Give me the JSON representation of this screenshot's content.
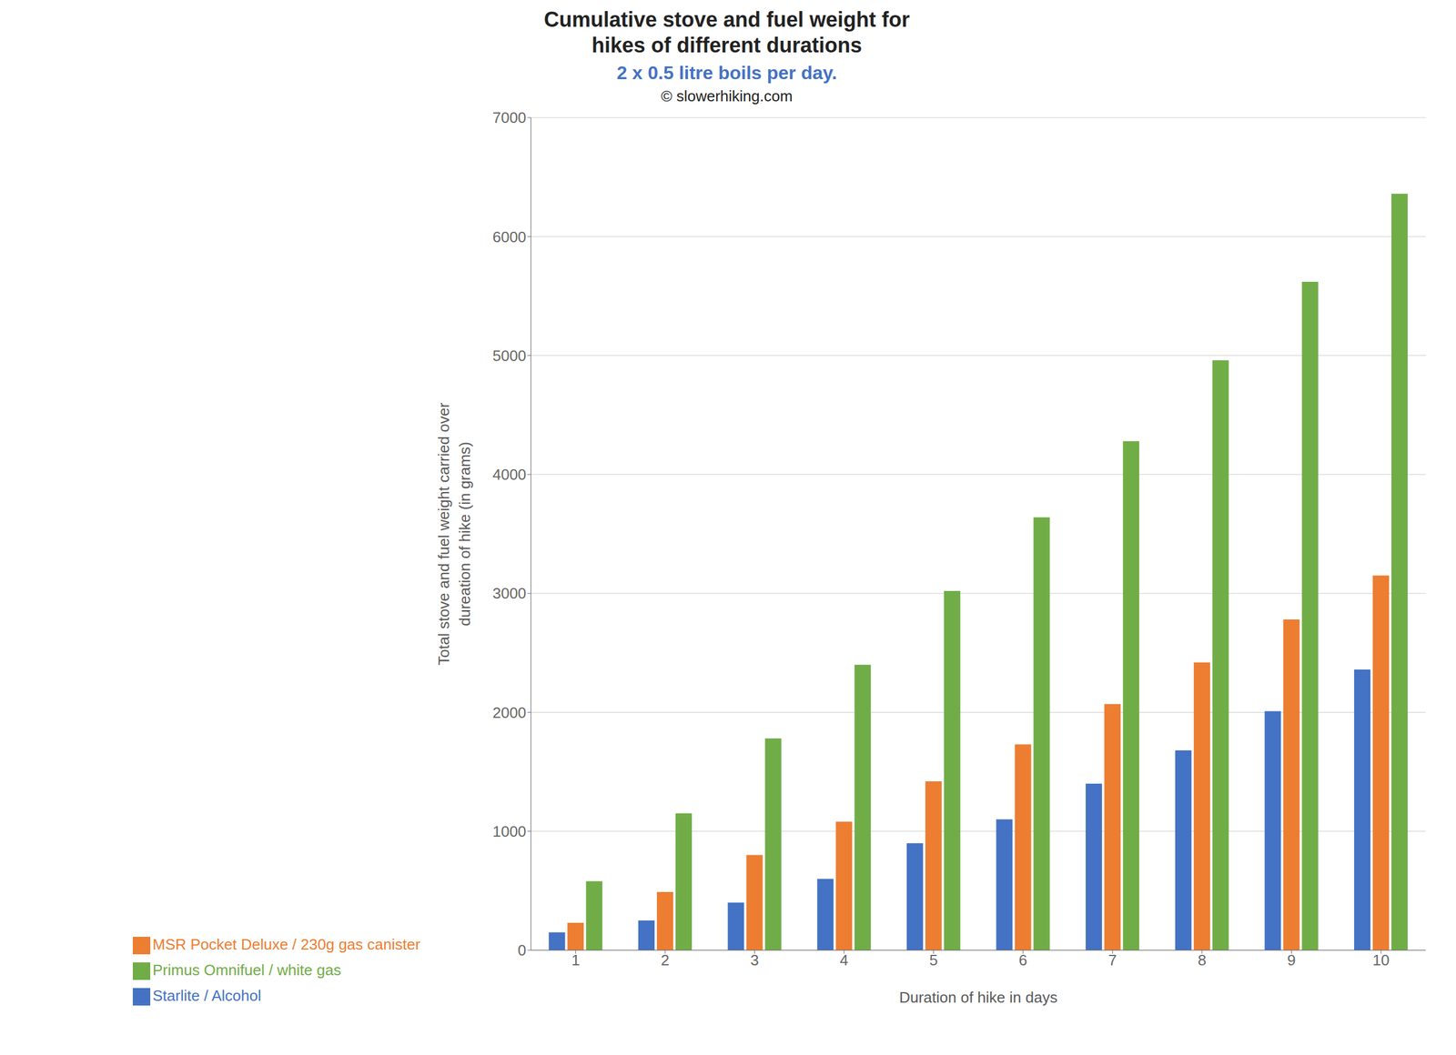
{
  "chart_data": {
    "type": "bar",
    "title": "Cumulative stove and fuel weight for\nhikes of different durations",
    "subtitle": "2 x 0.5 litre boils per day.",
    "annotations": [
      "© slowerhiking.com"
    ],
    "xlabel": "Duration of hike in days",
    "ylabel": "Total stove and fuel weight carried over\ndureation of hike (in grams)",
    "categories": [
      "1",
      "2",
      "3",
      "4",
      "5",
      "6",
      "7",
      "8",
      "9",
      "10"
    ],
    "series": [
      {
        "name": "Starlite / Alcohol",
        "color": "#4472C4",
        "values": [
          150,
          250,
          400,
          600,
          900,
          1100,
          1400,
          1680,
          2010,
          2360
        ]
      },
      {
        "name": "MSR Pocket Deluxe / 230g gas canister",
        "color": "#ED7D31",
        "values": [
          230,
          490,
          800,
          1080,
          1420,
          1730,
          2070,
          2420,
          2780,
          3150
        ]
      },
      {
        "name": "Primus Omnifuel / white gas",
        "color": "#70AD47",
        "values": [
          580,
          1150,
          1780,
          2400,
          3020,
          3640,
          4280,
          4960,
          5620,
          6360
        ]
      }
    ],
    "ylim": [
      0,
      7000
    ],
    "yticks": [
      0,
      1000,
      2000,
      3000,
      4000,
      5000,
      6000,
      7000
    ],
    "grid": true,
    "legend": "bottom"
  }
}
